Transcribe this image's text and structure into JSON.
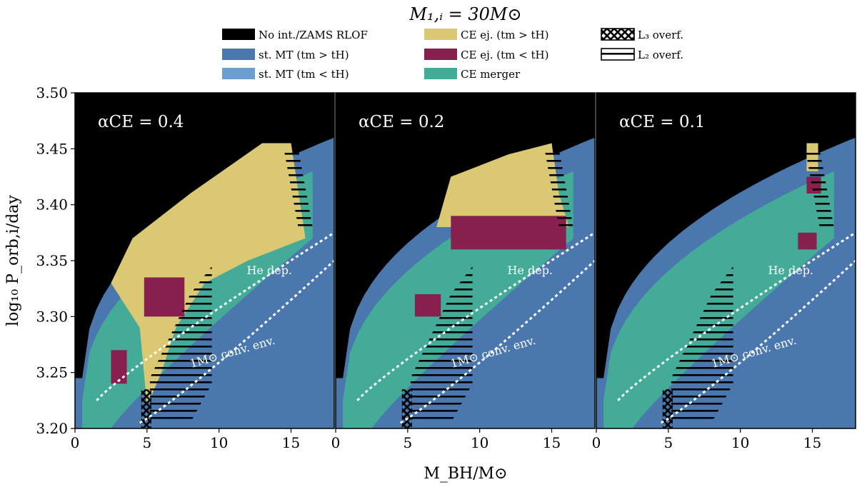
{
  "figure_title": "M₁,ᵢ = 30M⊙",
  "chart_data": [
    {
      "type": "heatmap",
      "panel_label": "αCE = 0.4",
      "xlabel": "M_BH/M⊙",
      "ylabel": "log₁₀ P_orb,i/day",
      "xlim": [
        0,
        18
      ],
      "ylim": [
        3.2,
        3.5
      ],
      "xticks": [
        "0",
        "5",
        "10",
        "15"
      ],
      "yticks": [
        "3.20",
        "3.25",
        "3.30",
        "3.35",
        "3.40",
        "3.45",
        "3.50"
      ],
      "annotations": [
        "He dep.",
        "1M⊙ conv. env."
      ],
      "regions": {
        "ce_ejection_long": "large yellow region between 1.5–16 M⊙ for log P ≈ 3.27–3.45",
        "ce_ejection_short": "maroon patches near 5 M⊙ (3.30–3.33) and 3 M⊙ (3.24–3.27)",
        "ce_merger": "teal band along the lower-left boundary"
      }
    },
    {
      "type": "heatmap",
      "panel_label": "αCE = 0.2",
      "xlabel": "M_BH/M⊙",
      "ylabel": "",
      "xlim": [
        0,
        18
      ],
      "ylim": [
        3.2,
        3.5
      ],
      "xticks": [
        "0",
        "5",
        "10",
        "15"
      ],
      "annotations": [
        "He dep.",
        "1M⊙ conv. env."
      ],
      "regions": {
        "ce_ejection_long": "yellow region 7–16 M⊙ for log P ≈ 3.38–3.45",
        "ce_ejection_short": "maroon region 8–16 M⊙ for log P ≈ 3.36–3.39"
      }
    },
    {
      "type": "heatmap",
      "panel_label": "αCE = 0.1",
      "xlabel": "M_BH/M⊙",
      "ylabel": "",
      "xlim": [
        0,
        18
      ],
      "ylim": [
        3.2,
        3.5
      ],
      "xticks": [
        "0",
        "5",
        "10",
        "15"
      ],
      "annotations": [
        "He dep.",
        "1M⊙ conv. env."
      ],
      "regions": {
        "ce_ejection_long": "small yellow patch near 15 M⊙",
        "ce_ejection_short": "maroon patches near 14–15 M⊙"
      }
    }
  ],
  "legend": [
    {
      "label": "No int./ZAMS RLOF",
      "color": "#000000"
    },
    {
      "label": "st. MT (tm > tH)",
      "color": "#4a77ad"
    },
    {
      "label": "st. MT (tm < tH)",
      "color": "#6b9fd3"
    },
    {
      "label": "CE ej. (tm > tH)",
      "color": "#dbc873"
    },
    {
      "label": "CE ej. (tm < tH)",
      "color": "#88204f"
    },
    {
      "label": "CE merger",
      "color": "#43ab97"
    },
    {
      "label": "L₃ overf.",
      "color": "#000000"
    },
    {
      "label": "L₂ overf.",
      "color": "#000000"
    }
  ],
  "colors": {
    "none": "#000000",
    "stable_long": "#4a77ad",
    "stable_short": "#6b9fd3",
    "ce_ej_long": "#dbc873",
    "ce_ej_short": "#88204f",
    "ce_merger": "#43ab97",
    "white": "#ffffff"
  }
}
